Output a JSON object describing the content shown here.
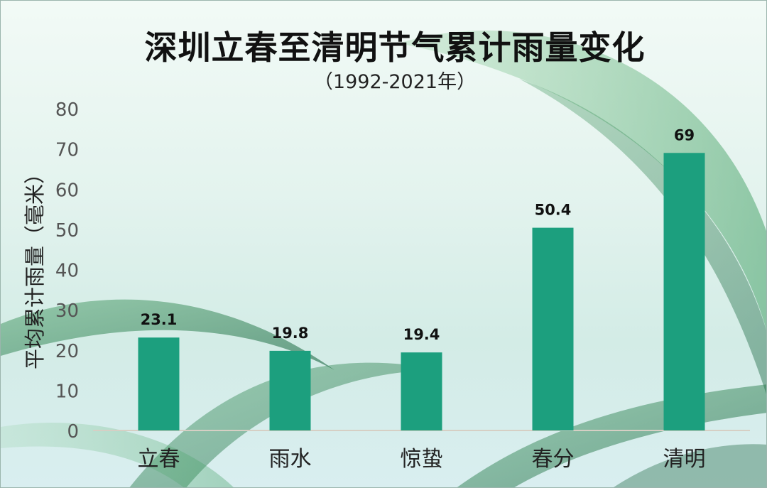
{
  "chart_data": {
    "type": "bar",
    "title": "深圳立春至清明节气累计雨量变化",
    "subtitle": "（1992-2021年）",
    "ylabel": "平均累计雨量（毫米）",
    "xlabel": "",
    "categories": [
      "立春",
      "雨水",
      "惊蛰",
      "春分",
      "清明"
    ],
    "values": [
      23.1,
      19.8,
      19.4,
      50.4,
      69
    ],
    "value_labels": [
      "23.1",
      "19.8",
      "19.4",
      "50.4",
      "69"
    ],
    "yticks": [
      "0",
      "10",
      "20",
      "30",
      "40",
      "50",
      "60",
      "70",
      "80"
    ],
    "ylim": [
      0,
      80
    ],
    "grid": false,
    "bar_color": "#1c9f7e"
  }
}
